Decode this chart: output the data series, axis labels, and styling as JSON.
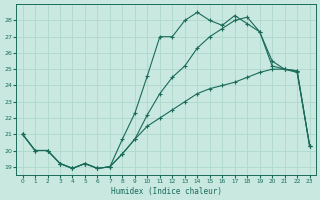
{
  "xlabel": "Humidex (Indice chaleur)",
  "bg_color": "#c8e8e0",
  "line_color": "#1a6b5a",
  "grid_color": "#b0d8cc",
  "xlim": [
    -0.5,
    23.5
  ],
  "ylim": [
    18.5,
    29.0
  ],
  "yticks": [
    19,
    20,
    21,
    22,
    23,
    24,
    25,
    26,
    27,
    28
  ],
  "xticks": [
    0,
    1,
    2,
    3,
    4,
    5,
    6,
    7,
    8,
    9,
    10,
    11,
    12,
    13,
    14,
    15,
    16,
    17,
    18,
    19,
    20,
    21,
    22,
    23
  ],
  "line1_x": [
    0,
    1,
    2,
    3,
    4,
    5,
    6,
    7,
    8,
    9,
    10,
    11,
    12,
    13,
    14,
    15,
    16,
    17,
    18,
    19,
    20,
    21,
    22,
    23
  ],
  "line1_y": [
    21.0,
    20.0,
    20.0,
    19.2,
    18.9,
    19.2,
    18.9,
    19.0,
    19.8,
    20.7,
    21.5,
    22.0,
    22.5,
    23.0,
    23.5,
    23.8,
    24.0,
    24.2,
    24.5,
    24.8,
    25.0,
    25.0,
    24.9,
    20.3
  ],
  "line2_x": [
    0,
    1,
    2,
    3,
    4,
    5,
    6,
    7,
    8,
    9,
    10,
    11,
    12,
    13,
    14,
    15,
    16,
    17,
    18,
    19,
    20,
    21,
    22,
    23
  ],
  "line2_y": [
    21.0,
    20.0,
    20.0,
    19.2,
    18.9,
    19.2,
    18.9,
    19.0,
    19.8,
    20.7,
    22.2,
    23.5,
    24.5,
    25.2,
    26.3,
    27.0,
    27.5,
    28.0,
    28.2,
    27.3,
    25.2,
    25.0,
    24.9,
    20.3
  ],
  "line3_x": [
    0,
    1,
    2,
    3,
    4,
    5,
    6,
    7,
    8,
    9,
    10,
    11,
    12,
    13,
    14,
    15,
    16,
    17,
    18,
    19,
    20,
    21,
    22,
    23
  ],
  "line3_y": [
    21.0,
    20.0,
    20.0,
    19.2,
    18.9,
    19.2,
    18.9,
    19.0,
    20.7,
    22.3,
    24.6,
    27.0,
    27.0,
    28.0,
    28.5,
    28.0,
    27.7,
    28.3,
    27.8,
    27.3,
    25.5,
    25.0,
    24.8,
    20.3
  ]
}
